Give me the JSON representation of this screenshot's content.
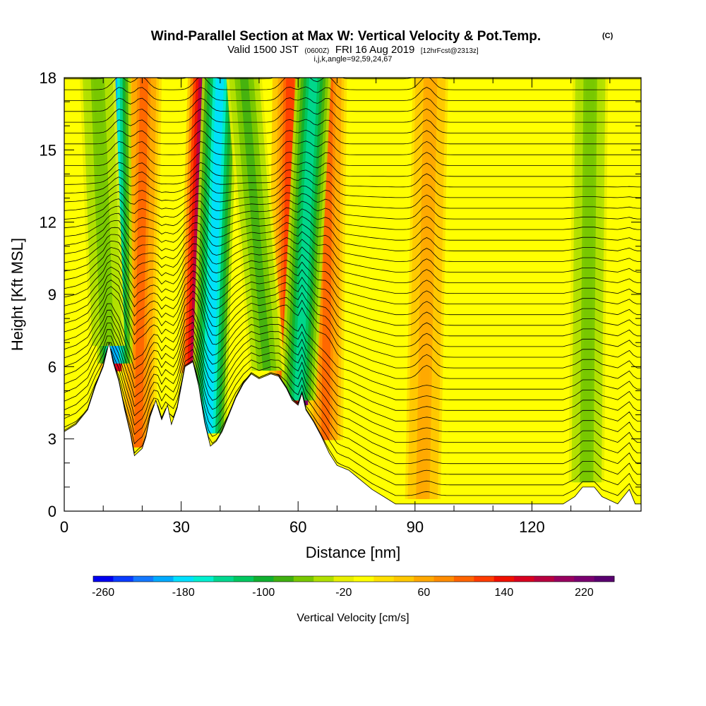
{
  "chart_data": {
    "type": "heatmap",
    "title": "Wind-Parallel Section at Max W: Vertical Velocity & Pot.Temp.",
    "title_mark": "(C)",
    "subtitle": {
      "valid": "Valid 1500 JST",
      "utc": "(0600Z)",
      "date": "FRI 16 Aug 2019",
      "forecast": "[12hrFcst@2313z]"
    },
    "indices": "i,j,k,angle=92,59,24,67",
    "xlabel": "Distance [nm]",
    "ylabel": "Height [Kft MSL]",
    "xlim": [
      0,
      148
    ],
    "ylim": [
      0,
      18
    ],
    "x_ticks": [
      "0",
      "30",
      "60",
      "90",
      "120"
    ],
    "x_tick_values": [
      0,
      30,
      60,
      90,
      120
    ],
    "y_ticks": [
      "0",
      "3",
      "6",
      "9",
      "12",
      "15",
      "18"
    ],
    "y_tick_values": [
      0,
      3,
      6,
      9,
      12,
      15,
      18
    ],
    "colorbar": {
      "label": "Vertical Velocity [cm/s]",
      "min": -270,
      "max": 250,
      "step": 20,
      "tick_labels": [
        "-260",
        "-180",
        "-100",
        "-20",
        "60",
        "140",
        "220"
      ],
      "tick_values": [
        -260,
        -180,
        -100,
        -20,
        60,
        140,
        220
      ],
      "colors": [
        "#0000f0",
        "#0a3cff",
        "#1478ff",
        "#00aaff",
        "#00e0ff",
        "#00f0d0",
        "#00d890",
        "#00c860",
        "#10b030",
        "#40b010",
        "#78c800",
        "#b0e000",
        "#e8f000",
        "#ffff00",
        "#ffe000",
        "#ffc800",
        "#ffa800",
        "#ff8c00",
        "#ff6400",
        "#ff3c00",
        "#f01000",
        "#d80020",
        "#b80040",
        "#980060",
        "#7a0070",
        "#5a0070"
      ]
    },
    "terrain_kft": [
      [
        0,
        3.3
      ],
      [
        3,
        3.6
      ],
      [
        6,
        4.2
      ],
      [
        8,
        5.2
      ],
      [
        10,
        6.0
      ],
      [
        11.5,
        7.0
      ],
      [
        12.5,
        6.2
      ],
      [
        14,
        5.4
      ],
      [
        15.5,
        4.2
      ],
      [
        17,
        3.2
      ],
      [
        18,
        2.3
      ],
      [
        20,
        2.6
      ],
      [
        21,
        3.1
      ],
      [
        22,
        3.9
      ],
      [
        23.5,
        4.6
      ],
      [
        25,
        3.8
      ],
      [
        26.5,
        4.4
      ],
      [
        27.5,
        3.6
      ],
      [
        29,
        4.3
      ],
      [
        31,
        6.0
      ],
      [
        33,
        6.2
      ],
      [
        34.5,
        5.2
      ],
      [
        36,
        3.7
      ],
      [
        37.5,
        2.7
      ],
      [
        39,
        2.9
      ],
      [
        40.5,
        3.3
      ],
      [
        42,
        3.9
      ],
      [
        44,
        4.7
      ],
      [
        46,
        5.3
      ],
      [
        48,
        5.7
      ],
      [
        50,
        5.5
      ],
      [
        53,
        5.7
      ],
      [
        55,
        5.6
      ],
      [
        57,
        5.1
      ],
      [
        58.5,
        4.6
      ],
      [
        60,
        4.4
      ],
      [
        61,
        4.9
      ],
      [
        62,
        4.2
      ],
      [
        64,
        3.7
      ],
      [
        66,
        3.1
      ],
      [
        68,
        2.4
      ],
      [
        70,
        1.9
      ],
      [
        73,
        1.7
      ],
      [
        76,
        1.3
      ],
      [
        79,
        0.9
      ],
      [
        82,
        0.6
      ],
      [
        85,
        0.3
      ],
      [
        88,
        0.3
      ],
      [
        104,
        0.3
      ],
      [
        112,
        0.3
      ],
      [
        120,
        0.3
      ],
      [
        128,
        0.3
      ],
      [
        131,
        0.6
      ],
      [
        133,
        1.0
      ],
      [
        136,
        1.0
      ],
      [
        138,
        0.6
      ],
      [
        142,
        0.3
      ],
      [
        145,
        0.9
      ],
      [
        146.5,
        0.3
      ],
      [
        148,
        0.3
      ]
    ],
    "updraft_bands": [
      {
        "x_top": 14.8,
        "x_bottom": 13.6,
        "w_cm_s": 150
      },
      {
        "x_top": 36.3,
        "x_bottom": 34.0,
        "w_cm_s": 220
      },
      {
        "x_top": 62.2,
        "x_bottom": 62.0,
        "w_cm_s": 220
      },
      {
        "x_top": 58.0,
        "x_bottom": 57.0,
        "w_cm_s": 120
      },
      {
        "x_top": 20.5,
        "x_bottom": 19.0,
        "w_cm_s": 90
      },
      {
        "x_top": 68.0,
        "x_bottom": 67.0,
        "w_cm_s": 90
      },
      {
        "x_top": 94.0,
        "x_bottom": 92.0,
        "w_cm_s": 60
      }
    ],
    "downdraft_bands": [
      {
        "x_top": 12.5,
        "x_bottom": 13.0,
        "w_cm_s": -200
      },
      {
        "x_top": 40.0,
        "x_bottom": 37.0,
        "w_cm_s": -190
      },
      {
        "x_top": 64.0,
        "x_bottom": 60.0,
        "w_cm_s": -150
      },
      {
        "x_top": 46.0,
        "x_bottom": 52.0,
        "w_cm_s": -80
      },
      {
        "x_top": 8.5,
        "x_bottom": 11.0,
        "w_cm_s": -60
      },
      {
        "x_top": 135.0,
        "x_bottom": 134.0,
        "w_cm_s": -60
      }
    ]
  }
}
